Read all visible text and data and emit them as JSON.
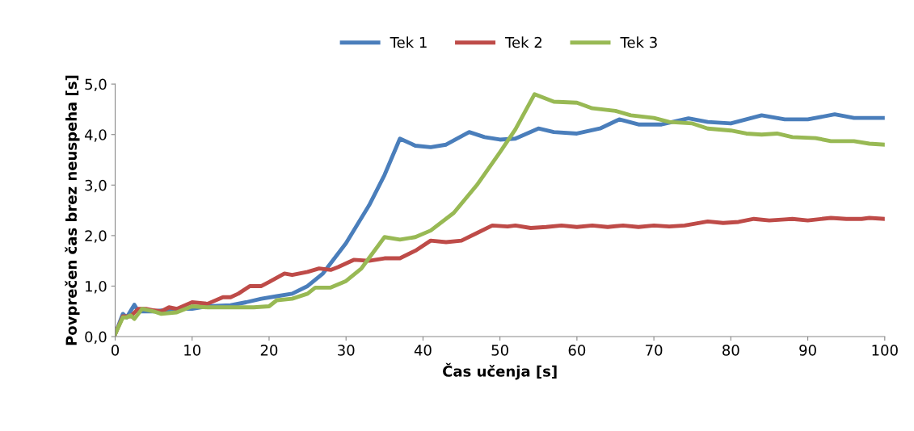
{
  "chart_data": {
    "type": "line",
    "xlabel": "Čas učenja [s]",
    "ylabel": "Povprečen čas brez neuspeha [s]",
    "xlim": [
      0,
      100
    ],
    "ylim": [
      0,
      5
    ],
    "xticks": [
      0,
      10,
      20,
      30,
      40,
      50,
      60,
      70,
      80,
      90,
      100
    ],
    "yticks": [
      {
        "value": 0,
        "label": "0,0"
      },
      {
        "value": 1,
        "label": "1,0"
      },
      {
        "value": 2,
        "label": "2,0"
      },
      {
        "value": 3,
        "label": "3,0"
      },
      {
        "value": 4,
        "label": "4,0"
      },
      {
        "value": 5,
        "label": "5,0"
      }
    ],
    "grid": false,
    "legend": "top",
    "marker": "none",
    "line_style": "solid",
    "series": [
      {
        "name": "Tek 1",
        "color": "#4a7ebb",
        "x": [
          0,
          1,
          1.5,
          2.5,
          3,
          5,
          8,
          10,
          12,
          15,
          17,
          19,
          21,
          23,
          25,
          27,
          30,
          33,
          35,
          37,
          39,
          41,
          43,
          46,
          48,
          50,
          52,
          55,
          57,
          60,
          63,
          65.5,
          68,
          71,
          74.5,
          77,
          80,
          84,
          87,
          90,
          93.5,
          96,
          100
        ],
        "values": [
          0.05,
          0.45,
          0.38,
          0.63,
          0.5,
          0.5,
          0.55,
          0.55,
          0.6,
          0.62,
          0.68,
          0.75,
          0.8,
          0.85,
          1.0,
          1.25,
          1.85,
          2.6,
          3.2,
          3.92,
          3.78,
          3.75,
          3.8,
          4.05,
          3.95,
          3.9,
          3.92,
          4.12,
          4.05,
          4.02,
          4.12,
          4.3,
          4.2,
          4.2,
          4.32,
          4.25,
          4.22,
          4.38,
          4.3,
          4.3,
          4.4,
          4.33,
          4.33
        ]
      },
      {
        "name": "Tek 2",
        "color": "#be4b48",
        "x": [
          0,
          1,
          2,
          3,
          4,
          5,
          6,
          7,
          8,
          10,
          12,
          14,
          15,
          16,
          17.5,
          19,
          20,
          22,
          23,
          25,
          26.5,
          28,
          29,
          31,
          33,
          35,
          37,
          39,
          41,
          43,
          45,
          47,
          49,
          51,
          52,
          54,
          56,
          58,
          60,
          62,
          64,
          66,
          68,
          70,
          72,
          74,
          77,
          79,
          81,
          83,
          85,
          87,
          88,
          90,
          93,
          95,
          97,
          98,
          100
        ],
        "values": [
          0.05,
          0.4,
          0.4,
          0.55,
          0.55,
          0.52,
          0.5,
          0.58,
          0.55,
          0.68,
          0.65,
          0.78,
          0.78,
          0.85,
          1.0,
          1.0,
          1.08,
          1.25,
          1.22,
          1.28,
          1.35,
          1.32,
          1.38,
          1.52,
          1.5,
          1.55,
          1.55,
          1.7,
          1.9,
          1.87,
          1.9,
          2.05,
          2.2,
          2.18,
          2.2,
          2.15,
          2.17,
          2.2,
          2.17,
          2.2,
          2.17,
          2.2,
          2.17,
          2.2,
          2.18,
          2.2,
          2.28,
          2.25,
          2.27,
          2.33,
          2.3,
          2.32,
          2.33,
          2.3,
          2.35,
          2.33,
          2.33,
          2.35,
          2.33
        ]
      },
      {
        "name": "Tek 3",
        "color": "#98b954",
        "x": [
          0,
          1,
          1.5,
          2,
          2.5,
          3.5,
          5,
          6,
          8,
          10,
          12,
          15,
          18,
          20,
          21,
          23,
          25,
          26,
          28,
          30,
          32,
          35,
          37,
          39,
          41,
          44,
          47,
          50,
          52,
          54.5,
          57,
          60,
          62,
          65,
          67,
          70,
          72,
          75,
          77,
          80,
          82,
          84,
          86,
          88,
          91,
          93,
          96,
          98,
          100
        ],
        "values": [
          0.05,
          0.38,
          0.38,
          0.42,
          0.35,
          0.55,
          0.5,
          0.45,
          0.48,
          0.6,
          0.58,
          0.58,
          0.58,
          0.6,
          0.72,
          0.75,
          0.85,
          0.97,
          0.97,
          1.1,
          1.35,
          1.97,
          1.92,
          1.97,
          2.1,
          2.45,
          3.0,
          3.65,
          4.1,
          4.8,
          4.65,
          4.63,
          4.52,
          4.47,
          4.38,
          4.33,
          4.25,
          4.22,
          4.12,
          4.08,
          4.02,
          4.0,
          4.02,
          3.95,
          3.93,
          3.87,
          3.87,
          3.82,
          3.8
        ]
      }
    ]
  }
}
